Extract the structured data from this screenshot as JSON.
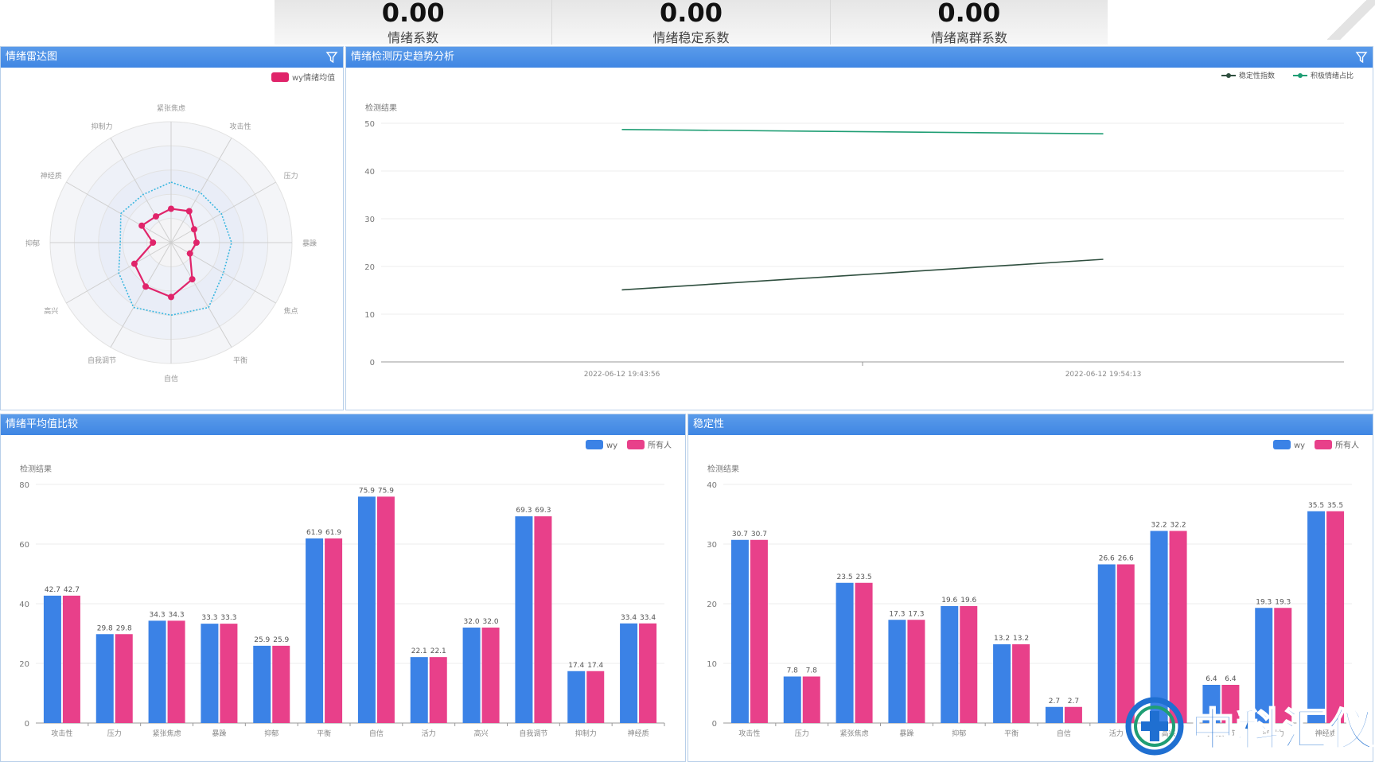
{
  "top_stats": [
    {
      "value": "0.00",
      "label": "情绪系数"
    },
    {
      "value": "0.00",
      "label": "情绪稳定系数"
    },
    {
      "value": "0.00",
      "label": "情绪离群系数"
    }
  ],
  "colors": {
    "header_blue": "#4a8fe7",
    "series_blue": "#3b82e6",
    "series_pink": "#e8408a",
    "radar_pink": "#e0246a",
    "radar_cyan": "#3cb7e0",
    "line_dark": "#2f4f3f",
    "line_green": "#1f9e74"
  },
  "panels": {
    "radar": {
      "title": "情绪雷达图"
    },
    "trend": {
      "title": "情绪检测历史趋势分析"
    },
    "avg": {
      "title": "情绪平均值比较"
    },
    "stab": {
      "title": "稳定性"
    }
  },
  "watermark": {
    "text": "中科汇仪"
  },
  "chart_data": [
    {
      "id": "radar",
      "type": "radar",
      "legend": [
        "wy情绪均值"
      ],
      "axes": [
        "紧张焦虑",
        "攻击性",
        "压力",
        "暴躁",
        "焦点",
        "平衡",
        "自信",
        "自我调节",
        "高兴",
        "抑郁",
        "神经质",
        "抑制力"
      ],
      "series": [
        {
          "name": "wy情绪均值",
          "values": [
            0.28,
            0.3,
            0.22,
            0.21,
            0.18,
            0.35,
            0.45,
            0.42,
            0.35,
            0.15,
            0.28,
            0.25
          ]
        },
        {
          "name": "",
          "values": [
            0.5,
            0.48,
            0.48,
            0.5,
            0.5,
            0.62,
            0.6,
            0.62,
            0.5,
            0.42,
            0.48,
            0.46
          ]
        }
      ]
    },
    {
      "id": "trend",
      "type": "line",
      "legend": [
        "稳定性指数",
        "积极情绪占比"
      ],
      "ylabel": "检测结果",
      "ylim": [
        0,
        50
      ],
      "yticks": [
        0,
        10,
        20,
        30,
        40,
        50
      ],
      "x": [
        "2022-06-12 19:43:56",
        "2022-06-12 19:54:13"
      ],
      "series": [
        {
          "name": "稳定性指数",
          "values": [
            15.1,
            21.5
          ]
        },
        {
          "name": "积极情绪占比",
          "values": [
            48.7,
            47.8
          ]
        }
      ]
    },
    {
      "id": "avg",
      "type": "bar",
      "legend": [
        "wy",
        "所有人"
      ],
      "ylabel": "检测结果",
      "ylim": [
        0,
        80
      ],
      "yticks": [
        0,
        20,
        40,
        60,
        80
      ],
      "categories": [
        "攻击性",
        "压力",
        "紧张焦虑",
        "暴躁",
        "抑郁",
        "平衡",
        "自信",
        "活力",
        "高兴",
        "自我调节",
        "抑制力",
        "神经质"
      ],
      "series": [
        {
          "name": "wy",
          "values": [
            42.7,
            29.8,
            34.3,
            33.3,
            25.9,
            61.9,
            75.9,
            22.1,
            32.0,
            69.3,
            17.4,
            33.4
          ]
        },
        {
          "name": "所有人",
          "values": [
            42.7,
            29.8,
            34.3,
            33.3,
            25.9,
            61.9,
            75.9,
            22.1,
            32.0,
            69.3,
            17.4,
            33.4
          ]
        }
      ],
      "labels": [
        "42.7",
        "29.8",
        "34.3",
        "33.3",
        "25.9",
        "61.9",
        "75.9",
        "22.1",
        "32.0",
        "69.3",
        "17.4",
        "33.4"
      ]
    },
    {
      "id": "stab",
      "type": "bar",
      "legend": [
        "wy",
        "所有人"
      ],
      "ylabel": "检测结果",
      "ylim": [
        0,
        40
      ],
      "yticks": [
        0,
        10,
        20,
        30,
        40
      ],
      "categories": [
        "攻击性",
        "压力",
        "紧张焦虑",
        "暴躁",
        "抑郁",
        "平衡",
        "自信",
        "活力",
        "高兴",
        "自我调节",
        "抑制力",
        "神经质"
      ],
      "series": [
        {
          "name": "wy",
          "values": [
            30.7,
            7.8,
            23.5,
            17.3,
            19.6,
            13.2,
            2.7,
            26.6,
            32.2,
            6.4,
            19.3,
            35.5
          ]
        },
        {
          "name": "所有人",
          "values": [
            30.7,
            7.8,
            23.5,
            17.3,
            19.6,
            13.2,
            2.7,
            26.6,
            32.2,
            6.4,
            19.3,
            35.5
          ]
        }
      ],
      "labels": [
        "30.7",
        "7.8",
        "23.5",
        "17.3",
        "19.6",
        "13.2",
        "2.7",
        "26.6",
        "32.2",
        "6.4",
        "19.3",
        "35.5"
      ]
    }
  ]
}
